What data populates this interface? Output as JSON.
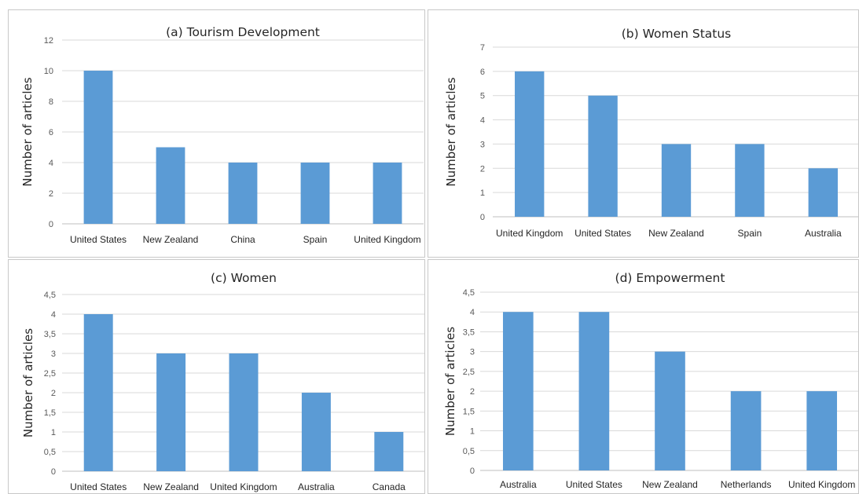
{
  "colors": {
    "bar": "#5b9bd5"
  },
  "chart_data": [
    {
      "type": "bar",
      "title": "(a) Tourism Development",
      "xlabel": "",
      "ylabel": "Number of articles",
      "categories": [
        "United States",
        "New Zealand",
        "China",
        "Spain",
        "United Kingdom"
      ],
      "values": [
        10,
        5,
        4,
        4,
        4
      ],
      "ylim": [
        0,
        12
      ],
      "yticks": [
        "0",
        "2",
        "4",
        "6",
        "8",
        "10",
        "12"
      ],
      "grid": true,
      "legend": "none"
    },
    {
      "type": "bar",
      "title": "(b) Women Status",
      "xlabel": "",
      "ylabel": "Number of articles",
      "categories": [
        "United Kingdom",
        "United States",
        "New Zealand",
        "Spain",
        "Australia"
      ],
      "values": [
        6,
        5,
        3,
        3,
        2
      ],
      "ylim": [
        0,
        7
      ],
      "yticks": [
        "0",
        "1",
        "2",
        "3",
        "4",
        "5",
        "6",
        "7"
      ],
      "grid": true,
      "legend": "none"
    },
    {
      "type": "bar",
      "title": "(c) Women",
      "xlabel": "",
      "ylabel": "Number of articles",
      "categories": [
        "United States",
        "New Zealand",
        "United Kingdom",
        "Australia",
        "Canada"
      ],
      "values": [
        4,
        3,
        3,
        2,
        1
      ],
      "ylim": [
        0,
        4.5
      ],
      "yticks": [
        "0",
        "0,5",
        "1",
        "1,5",
        "2",
        "2,5",
        "3",
        "3,5",
        "4",
        "4,5"
      ],
      "grid": true,
      "legend": "none"
    },
    {
      "type": "bar",
      "title": "(d) Empowerment",
      "xlabel": "",
      "ylabel": "Number of articles",
      "categories": [
        "Australia",
        "United States",
        "New Zealand",
        "Netherlands",
        "United Kingdom"
      ],
      "values": [
        4,
        4,
        3,
        2,
        2
      ],
      "ylim": [
        0,
        4.5
      ],
      "yticks": [
        "0",
        "0,5",
        "1",
        "1,5",
        "2",
        "2,5",
        "3",
        "3,5",
        "4",
        "4,5"
      ],
      "grid": true,
      "legend": "none"
    }
  ]
}
